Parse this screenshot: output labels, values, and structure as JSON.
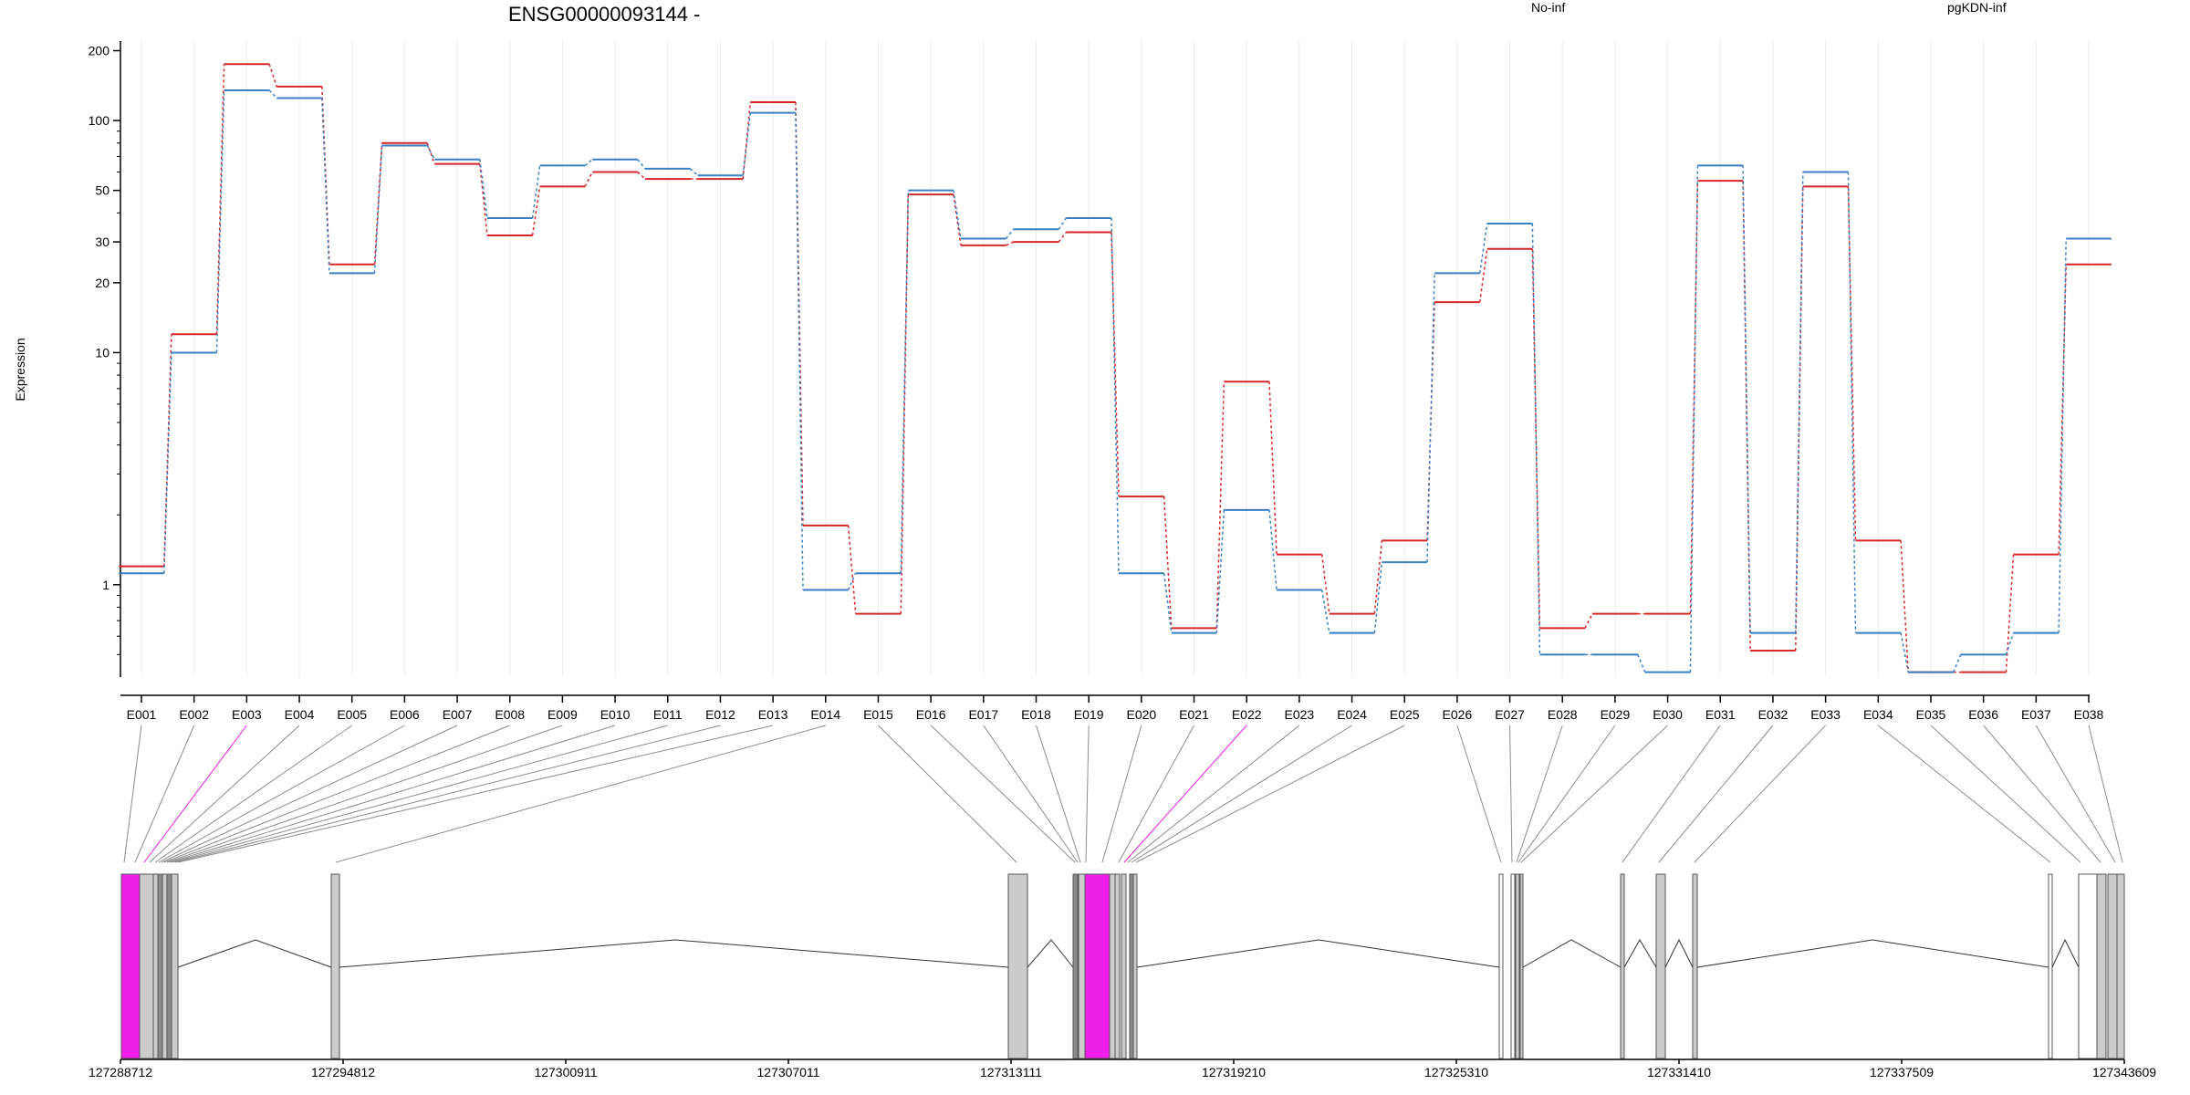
{
  "chart_data": {
    "type": "line",
    "title": "ENSG00000093144 -",
    "ylabel": "Expression",
    "xlabel": "",
    "yscale": "log",
    "ylim": [
      0.4,
      220
    ],
    "yticks": [
      1,
      10,
      20,
      30,
      50,
      100,
      200
    ],
    "ytick_labels": [
      "1",
      "10",
      "20",
      "30",
      "50",
      "100",
      "200"
    ],
    "legend_placement": "top",
    "grid": "vertical-light",
    "categories": [
      "E001",
      "E002",
      "E003",
      "E004",
      "E005",
      "E006",
      "E007",
      "E008",
      "E009",
      "E010",
      "E011",
      "E012",
      "E013",
      "E014",
      "E015",
      "E016",
      "E017",
      "E018",
      "E019",
      "E020",
      "E021",
      "E022",
      "E023",
      "E024",
      "E025",
      "E026",
      "E027",
      "E028",
      "E029",
      "E030",
      "E031",
      "E032",
      "E033",
      "E034",
      "E035",
      "E036",
      "E037",
      "E038"
    ],
    "series": [
      {
        "name": "No-inf",
        "color": "#d62728",
        "values": [
          1.2,
          12,
          175,
          140,
          24,
          80,
          65,
          32,
          52,
          60,
          56,
          56,
          120,
          1.8,
          0.75,
          48,
          29,
          30,
          33,
          2.4,
          0.65,
          7.5,
          1.35,
          0.75,
          1.55,
          16.5,
          28,
          0.65,
          0.75,
          0.75,
          55,
          0.52,
          52,
          1.55,
          0.42,
          0.42,
          1.35,
          24
        ]
      },
      {
        "name": "pgKDN-inf",
        "color": "#3a7fc1",
        "values": [
          1.12,
          10,
          135,
          125,
          22,
          78,
          68,
          38,
          64,
          68,
          62,
          58,
          108,
          0.95,
          1.12,
          50,
          31,
          34,
          38,
          1.12,
          0.62,
          2.1,
          0.95,
          0.62,
          1.25,
          22,
          36,
          0.5,
          0.5,
          0.42,
          64,
          0.62,
          60,
          0.62,
          0.42,
          0.5,
          0.62,
          31
        ]
      }
    ]
  },
  "gene_model": {
    "coordinate_labels": [
      "127288712",
      "127294812",
      "127300911",
      "127307011",
      "127313111",
      "127319210",
      "127325310",
      "127331410",
      "127337509",
      "127343609"
    ],
    "coordinate_range": [
      127288712,
      127343609
    ],
    "highlight_color": "#ee1fe8",
    "highlighted_exons": [
      "E003",
      "E022"
    ]
  }
}
